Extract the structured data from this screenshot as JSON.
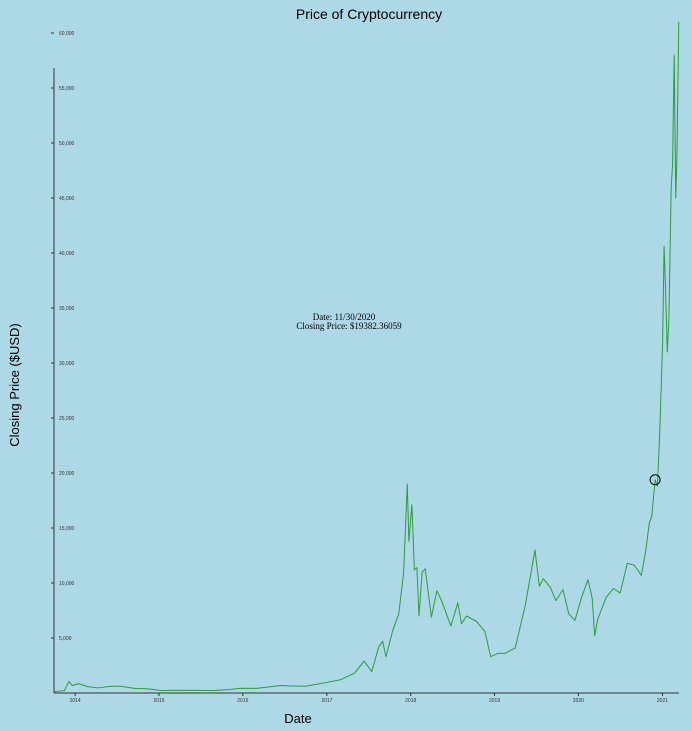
{
  "chart_data": {
    "type": "line",
    "title": "Price of Cryptocurrency",
    "xlabel": "Date",
    "ylabel": "Closing Price ($USD)",
    "xlim": [
      "2013-10-01",
      "2021-03-14"
    ],
    "ylim": [
      0,
      62000
    ],
    "x_ticks": [
      "2014",
      "2015",
      "2016",
      "2017",
      "2018",
      "2019",
      "2020",
      "2021"
    ],
    "y_ticks": [
      "5,000",
      "10,000",
      "15,000",
      "20,000",
      "25,000",
      "30,000",
      "35,000",
      "40,000",
      "45,000",
      "50,000",
      "55,000",
      "60,000"
    ],
    "series": [
      {
        "x": [
          "2013-10-01",
          "2013-11-15",
          "2013-12-05",
          "2013-12-20",
          "2014-01-15",
          "2014-02-25",
          "2014-04-10",
          "2014-06-01",
          "2014-07-15",
          "2014-09-20",
          "2014-11-15",
          "2015-01-15",
          "2015-03-01",
          "2015-06-01",
          "2015-09-01",
          "2015-11-05",
          "2015-12-20",
          "2016-03-01",
          "2016-06-15",
          "2016-07-15",
          "2016-10-01",
          "2016-12-31",
          "2017-03-01",
          "2017-05-01",
          "2017-06-12",
          "2017-07-15",
          "2017-08-15",
          "2017-09-01",
          "2017-09-15",
          "2017-10-15",
          "2017-11-10",
          "2017-12-01",
          "2017-12-17",
          "2017-12-24",
          "2018-01-06",
          "2018-01-17",
          "2018-01-28",
          "2018-02-06",
          "2018-02-20",
          "2018-03-05",
          "2018-04-01",
          "2018-04-25",
          "2018-05-15",
          "2018-06-25",
          "2018-07-25",
          "2018-08-10",
          "2018-09-01",
          "2018-10-15",
          "2018-11-20",
          "2018-12-15",
          "2019-01-15",
          "2019-02-15",
          "2019-04-01",
          "2019-05-15",
          "2019-06-26",
          "2019-07-15",
          "2019-08-01",
          "2019-09-01",
          "2019-09-25",
          "2019-10-26",
          "2019-11-20",
          "2019-12-17",
          "2020-01-15",
          "2020-02-12",
          "2020-03-01",
          "2020-03-12",
          "2020-03-25",
          "2020-05-01",
          "2020-06-01",
          "2020-07-01",
          "2020-08-01",
          "2020-09-01",
          "2020-10-01",
          "2020-10-20",
          "2020-11-05",
          "2020-11-15",
          "2020-11-30",
          "2020-12-10",
          "2020-12-20",
          "2021-01-02",
          "2021-01-08",
          "2021-01-14",
          "2021-01-22",
          "2021-01-29",
          "2021-02-08",
          "2021-02-14",
          "2021-02-21",
          "2021-02-28",
          "2021-03-05",
          "2021-03-13"
        ],
        "y": [
          125,
          210,
          1050,
          680,
          850,
          580,
          460,
          600,
          620,
          410,
          370,
          220,
          250,
          240,
          230,
          320,
          430,
          420,
          680,
          650,
          610,
          960,
          1200,
          1800,
          2900,
          1950,
          4200,
          4700,
          3300,
          5700,
          7200,
          10900,
          19000,
          13800,
          17100,
          11200,
          11400,
          7000,
          11000,
          11300,
          6900,
          9300,
          8400,
          6100,
          8200,
          6300,
          7000,
          6500,
          5600,
          3300,
          3600,
          3600,
          4100,
          8000,
          13000,
          9700,
          10400,
          9600,
          8400,
          9400,
          7200,
          6600,
          8700,
          10300,
          8600,
          5200,
          6700,
          8700,
          9500,
          9100,
          11800,
          11600,
          10700,
          12900,
          15500,
          16000,
          19382.36059,
          18800,
          23600,
          32000,
          40600,
          37000,
          31000,
          34000,
          46000,
          48000,
          58000,
          45000,
          48800,
          61000
        ],
        "highlight": {
          "date": "11/30/2020",
          "price": "$19382.36059"
        }
      }
    ]
  },
  "tooltip": {
    "date_text": "Date: 11/30/2020",
    "price_text": "Closing Price: $19382.36059"
  }
}
